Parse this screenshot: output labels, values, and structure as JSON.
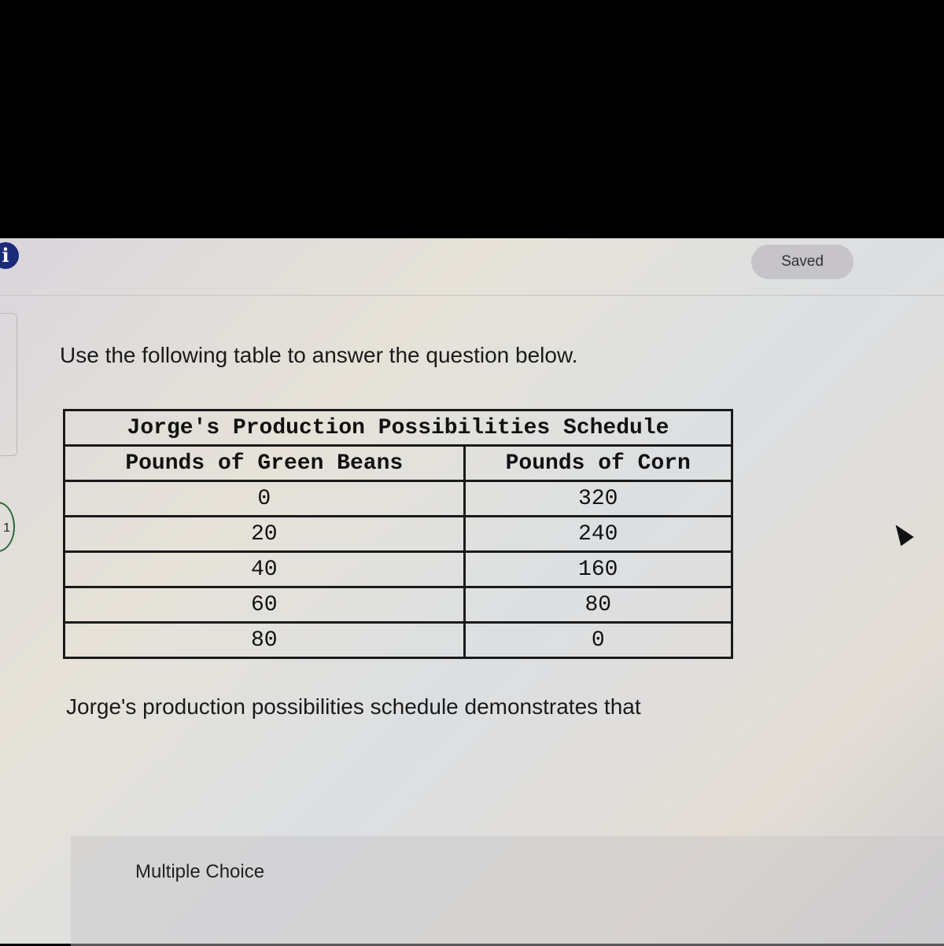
{
  "header": {
    "saved_label": "Saved",
    "info_icon": "info-icon"
  },
  "question_number": "1",
  "prompt": "Use the following table to answer the question below.",
  "table": {
    "caption": "Jorge's Production Possibilities Schedule",
    "columns": [
      "Pounds of Green Beans",
      "Pounds of Corn"
    ],
    "rows": [
      [
        "0",
        "320"
      ],
      [
        "20",
        "240"
      ],
      [
        "40",
        "160"
      ],
      [
        "60",
        "80"
      ],
      [
        "80",
        "0"
      ]
    ]
  },
  "question": "Jorge's production possibilities schedule demonstrates that",
  "answer_section": {
    "label": "Multiple Choice"
  }
}
